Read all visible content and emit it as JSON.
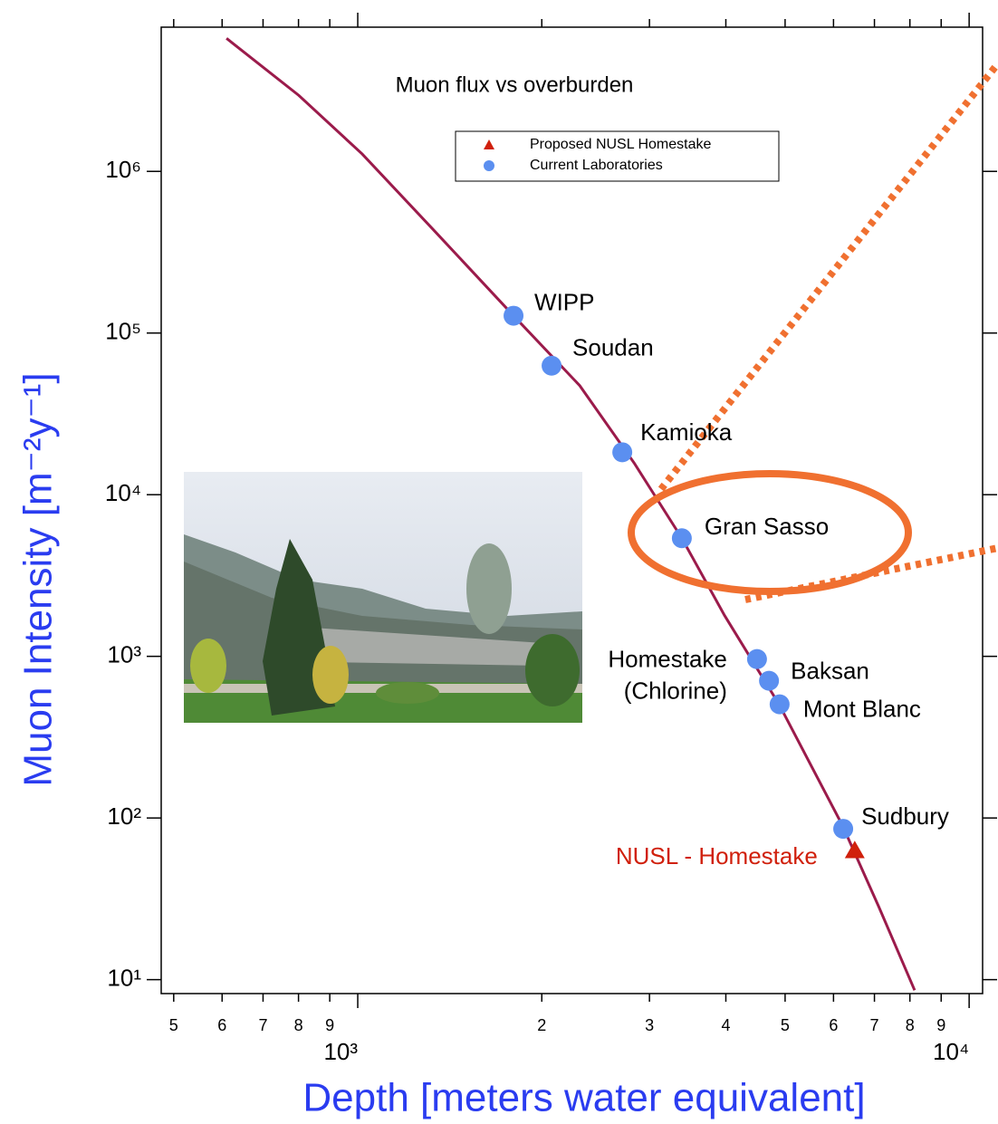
{
  "chart_data": {
    "type": "scatter",
    "title": "Muon flux vs overburden",
    "x_label": "Depth [meters water equivalent]",
    "y_label": "Muon Intensity [m⁻²y⁻¹]",
    "x_scale": "log",
    "y_scale": "log",
    "xlim": [
      477,
      10520
    ],
    "ylim": [
      8.2,
      7800000
    ],
    "xticks": [
      {
        "value": 500,
        "label": "5"
      },
      {
        "value": 600,
        "label": "6"
      },
      {
        "value": 700,
        "label": "7"
      },
      {
        "value": 800,
        "label": "8"
      },
      {
        "value": 900,
        "label": "9"
      },
      {
        "value": 1000,
        "label": "10³"
      },
      {
        "value": 2000,
        "label": "2"
      },
      {
        "value": 3000,
        "label": "3"
      },
      {
        "value": 4000,
        "label": "4"
      },
      {
        "value": 5000,
        "label": "5"
      },
      {
        "value": 6000,
        "label": "6"
      },
      {
        "value": 7000,
        "label": "7"
      },
      {
        "value": 8000,
        "label": "8"
      },
      {
        "value": 9000,
        "label": "9"
      },
      {
        "value": 10000,
        "label": "10⁴"
      }
    ],
    "yticks": [
      {
        "value": 10,
        "label": "10¹"
      },
      {
        "value": 100,
        "label": "10²"
      },
      {
        "value": 1000,
        "label": "10³"
      },
      {
        "value": 10000,
        "label": "10⁴"
      },
      {
        "value": 100000,
        "label": "10⁵"
      },
      {
        "value": 1000000,
        "label": "10⁶"
      }
    ],
    "legend_position": "top",
    "curve": {
      "color": "#9b1b4b",
      "x": [
        610,
        801,
        1017,
        1336,
        1798,
        2307,
        2832,
        3389,
        3982,
        4887,
        6203,
        7114,
        8144
      ],
      "values": [
        6650000,
        2950000,
        1280000,
        427000,
        128000,
        47300,
        15700,
        5380,
        1786,
        505,
        90.2,
        28.3,
        8.6
      ]
    },
    "series": [
      {
        "name": "Proposed NUSL Homestake",
        "color": "#d0200c",
        "marker": "triangle",
        "x": [
          6500
        ],
        "values": [
          62.8
        ],
        "labels": [
          "NUSL - Homestake"
        ]
      },
      {
        "name": "Current Laboratories",
        "color": "#5b8ff0",
        "marker": "circle",
        "x": [
          1798,
          2075,
          2708,
          3389,
          4498,
          4706,
          4898,
          6223
        ],
        "values": [
          128000,
          62800,
          18300,
          5380,
          962,
          706,
          505,
          85.7
        ],
        "labels": [
          "WIPP",
          "Soudan",
          "Kamioka",
          "Gran Sasso",
          [
            "Homestake",
            "(Chlorine)"
          ],
          "Baksan",
          "Mont Blanc",
          "Sudbury"
        ]
      }
    ]
  }
}
